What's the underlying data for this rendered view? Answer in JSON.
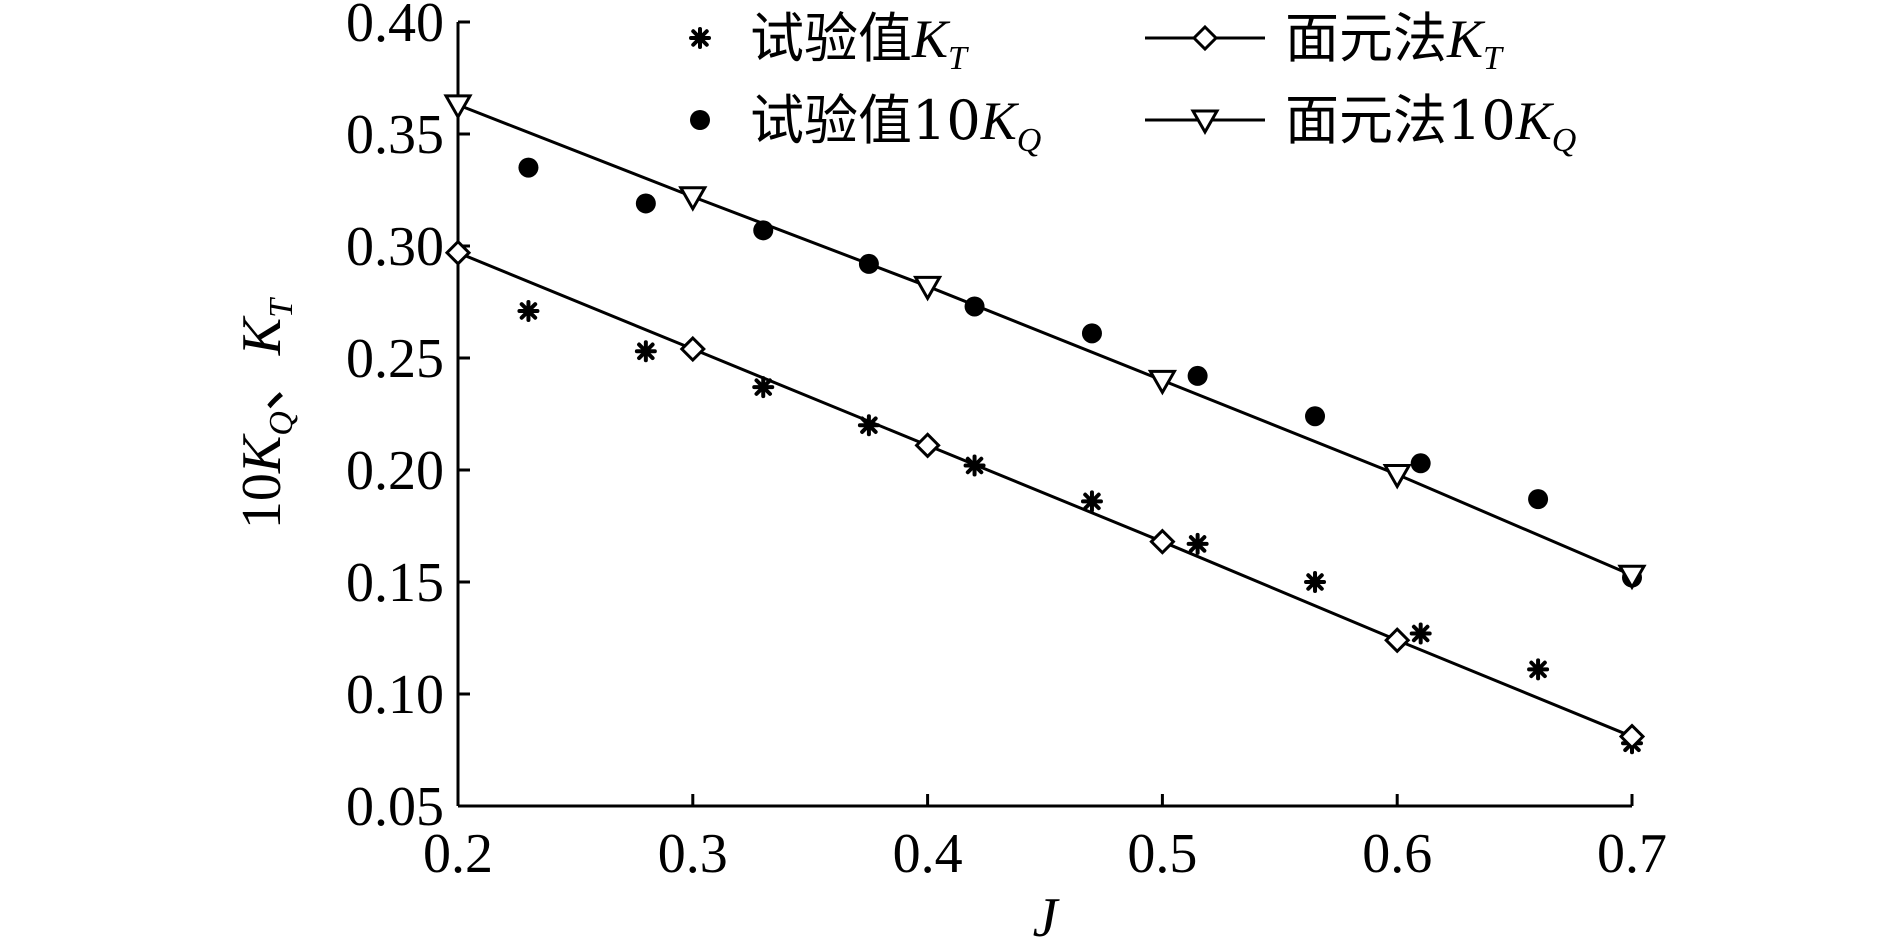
{
  "chart_data": {
    "type": "scatter",
    "title": "",
    "xlabel": "J",
    "ylabel": {
      "prefix": "10K",
      "prefix_sub": "Q",
      "sep": "、",
      "main": "K",
      "main_sub": "T"
    },
    "xlim": [
      0.2,
      0.7
    ],
    "ylim": [
      0.05,
      0.4
    ],
    "x_ticks": [
      "0.2",
      "0.3",
      "0.4",
      "0.5",
      "0.6",
      "0.7"
    ],
    "y_ticks": [
      "0.05",
      "0.10",
      "0.15",
      "0.20",
      "0.25",
      "0.30",
      "0.35",
      "0.40"
    ],
    "grid": false,
    "legend_position": "top",
    "series": [
      {
        "name": "试验值K_T",
        "name_text": "试验值",
        "name_sym": "K",
        "name_sub": "T",
        "marker": "asterisk",
        "line": false,
        "x": [
          0.23,
          0.28,
          0.33,
          0.375,
          0.42,
          0.47,
          0.515,
          0.565,
          0.61,
          0.66,
          0.7
        ],
        "y": [
          0.271,
          0.253,
          0.237,
          0.22,
          0.202,
          0.186,
          0.167,
          0.15,
          0.127,
          0.111,
          0.078
        ]
      },
      {
        "name": "试验值10K_Q",
        "name_text": "试验值10",
        "name_sym": "K",
        "name_sub": "Q",
        "marker": "circle",
        "line": false,
        "x": [
          0.23,
          0.28,
          0.33,
          0.375,
          0.42,
          0.47,
          0.515,
          0.565,
          0.61,
          0.66,
          0.7
        ],
        "y": [
          0.335,
          0.319,
          0.307,
          0.292,
          0.273,
          0.261,
          0.242,
          0.224,
          0.203,
          0.187,
          0.152
        ]
      },
      {
        "name": "面元法K_T",
        "name_text": "面元法",
        "name_sym": "K",
        "name_sub": "T",
        "marker": "diamond",
        "line": true,
        "x": [
          0.2,
          0.3,
          0.4,
          0.5,
          0.6,
          0.7
        ],
        "y": [
          0.297,
          0.254,
          0.211,
          0.168,
          0.124,
          0.081
        ]
      },
      {
        "name": "面元法10K_Q",
        "name_text": "面元法10",
        "name_sym": "K",
        "name_sub": "Q",
        "marker": "triangle-down",
        "line": true,
        "x": [
          0.2,
          0.3,
          0.4,
          0.5,
          0.6,
          0.7
        ],
        "y": [
          0.363,
          0.322,
          0.282,
          0.24,
          0.198,
          0.153
        ]
      }
    ]
  }
}
